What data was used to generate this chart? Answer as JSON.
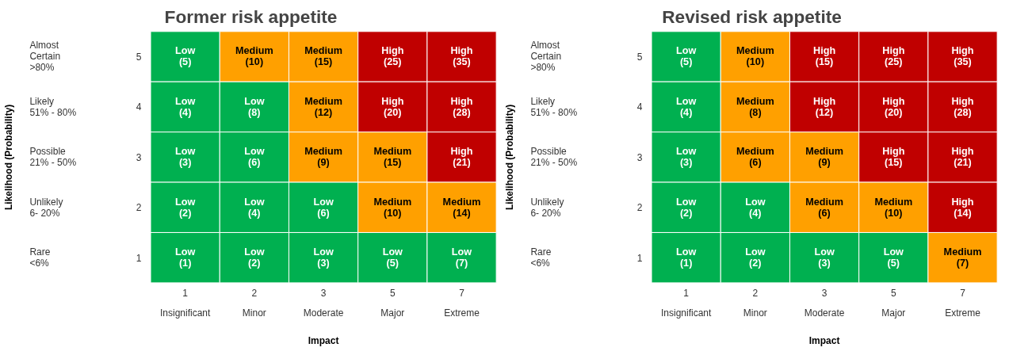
{
  "chart_data": [
    {
      "type": "heatmap",
      "title": "Former risk appetite",
      "xlabel": "Impact",
      "ylabel": "Likelihood (Probability)",
      "categories": [
        "Insignificant",
        "Minor",
        "Moderate",
        "Major",
        "Extreme"
      ],
      "annotations": [
        "1",
        "2",
        "3",
        "5",
        "7"
      ],
      "y_categories": [
        "5",
        "4",
        "3",
        "2",
        "1"
      ],
      "y2_categories": [
        "Almost\nCertain\n>80%",
        "Likely\n51% - 80%",
        "Possible\n21% - 50%",
        "Unlikely\n6- 20%",
        "Rare\n<6%"
      ],
      "cells": [
        [
          5,
          10,
          15,
          25,
          35
        ],
        [
          4,
          8,
          12,
          20,
          28
        ],
        [
          3,
          6,
          9,
          15,
          21
        ],
        [
          2,
          4,
          6,
          10,
          14
        ],
        [
          1,
          2,
          3,
          5,
          7
        ]
      ],
      "cell_labels": [
        [
          "Low\n(5)",
          "Medium\n(10)",
          "Medium\n(15)",
          "High\n(25)",
          "High\n(35)"
        ],
        [
          "Low\n(4)",
          "Low\n(8)",
          "Medium\n(12)",
          "High\n(20)",
          "High\n(28)"
        ],
        [
          "Low\n(3)",
          "Low\n(6)",
          "Medium\n(9)",
          "Medium\n(15)",
          "High\n(21)"
        ],
        [
          "Low\n(2)",
          "Low\n(4)",
          "Low\n(6)",
          "Medium\n(10)",
          "Medium\n(14)"
        ],
        [
          "Low\n(1)",
          "Low\n(2)",
          "Low\n(3)",
          "Low\n(5)",
          "Low\n(7)"
        ]
      ],
      "colors": [
        [
          "#00b050",
          "#ffa000",
          "#ffa000",
          "#c00000",
          "#c00000"
        ],
        [
          "#00b050",
          "#00b050",
          "#ffa000",
          "#c00000",
          "#c00000"
        ],
        [
          "#00b050",
          "#00b050",
          "#ffa000",
          "#ffa000",
          "#c00000"
        ],
        [
          "#00b050",
          "#00b050",
          "#00b050",
          "#ffa000",
          "#ffa000"
        ],
        [
          "#00b050",
          "#00b050",
          "#00b050",
          "#00b050",
          "#00b050"
        ]
      ]
    },
    {
      "type": "heatmap",
      "title": "Revised risk appetite",
      "xlabel": "Impact",
      "ylabel": "Likelihood (Probability)",
      "categories": [
        "Insignificant",
        "Minor",
        "Moderate",
        "Major",
        "Extreme"
      ],
      "annotations": [
        "1",
        "2",
        "3",
        "5",
        "7"
      ],
      "y_categories": [
        "5",
        "4",
        "3",
        "2",
        "1"
      ],
      "y2_categories": [
        "Almost\nCertain\n>80%",
        "Likely\n51% - 80%",
        "Possible\n21% - 50%",
        "Unlikely\n6- 20%",
        "Rare\n<6%"
      ],
      "cells": [
        [
          5,
          10,
          15,
          25,
          35
        ],
        [
          4,
          8,
          12,
          20,
          28
        ],
        [
          3,
          6,
          9,
          15,
          21
        ],
        [
          2,
          4,
          6,
          10,
          14
        ],
        [
          1,
          2,
          3,
          5,
          7
        ]
      ],
      "cell_labels": [
        [
          "Low\n(5)",
          "Medium\n(10)",
          "High\n(15)",
          "High\n(25)",
          "High\n(35)"
        ],
        [
          "Low\n(4)",
          "Medium\n(8)",
          "High\n(12)",
          "High\n(20)",
          "High\n(28)"
        ],
        [
          "Low\n(3)",
          "Medium\n(6)",
          "Medium\n(9)",
          "High\n(15)",
          "High\n(21)"
        ],
        [
          "Low\n(2)",
          "Low\n(4)",
          "Medium\n(6)",
          "Medium\n(10)",
          "High\n(14)"
        ],
        [
          "Low\n(1)",
          "Low\n(2)",
          "Low\n(3)",
          "Low\n(5)",
          "Medium\n(7)"
        ]
      ],
      "colors": [
        [
          "#00b050",
          "#ffa000",
          "#c00000",
          "#c00000",
          "#c00000"
        ],
        [
          "#00b050",
          "#ffa000",
          "#c00000",
          "#c00000",
          "#c00000"
        ],
        [
          "#00b050",
          "#ffa000",
          "#ffa000",
          "#c00000",
          "#c00000"
        ],
        [
          "#00b050",
          "#00b050",
          "#ffa000",
          "#ffa000",
          "#c00000"
        ],
        [
          "#00b050",
          "#00b050",
          "#00b050",
          "#00b050",
          "#ffa000"
        ]
      ]
    }
  ]
}
